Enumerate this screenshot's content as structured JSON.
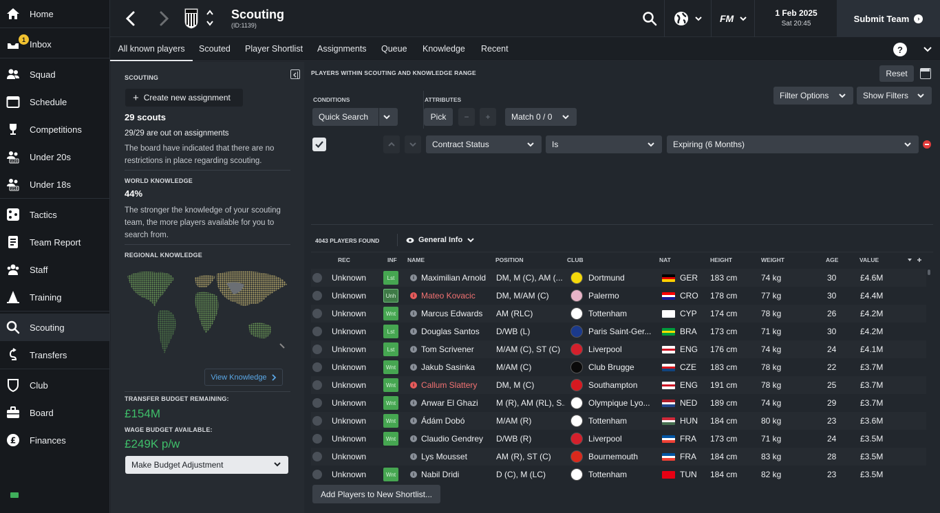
{
  "sidebar": {
    "items": [
      {
        "label": "Home",
        "icon": "home-icon"
      },
      {
        "label": "Inbox",
        "icon": "inbox-icon",
        "badge": "1"
      },
      {
        "label": "Squad",
        "icon": "squad-icon"
      },
      {
        "label": "Schedule",
        "icon": "calendar-icon"
      },
      {
        "label": "Competitions",
        "icon": "trophy-icon"
      },
      {
        "label": "Under 20s",
        "icon": "under20-icon",
        "tag": "U20"
      },
      {
        "label": "Under 18s",
        "icon": "under18-icon",
        "tag": "U18"
      },
      {
        "label": "Tactics",
        "icon": "tactics-icon"
      },
      {
        "label": "Team Report",
        "icon": "report-icon"
      },
      {
        "label": "Staff",
        "icon": "staff-icon"
      },
      {
        "label": "Training",
        "icon": "training-icon"
      },
      {
        "label": "Scouting",
        "icon": "search-icon"
      },
      {
        "label": "Transfers",
        "icon": "transfers-icon"
      },
      {
        "label": "Club",
        "icon": "club-icon"
      },
      {
        "label": "Board",
        "icon": "briefcase-icon"
      },
      {
        "label": "Finances",
        "icon": "pound-icon"
      }
    ],
    "active": "Scouting"
  },
  "header": {
    "title": "Scouting",
    "subtitle": "(ID:1139)",
    "date": "1 Feb 2025",
    "time": "Sat 20:45",
    "fm_label": "FM",
    "submit_label": "Submit Team"
  },
  "tabs": [
    {
      "label": "All known players",
      "active": true
    },
    {
      "label": "Scouted"
    },
    {
      "label": "Player Shortlist"
    },
    {
      "label": "Assignments"
    },
    {
      "label": "Queue"
    },
    {
      "label": "Knowledge"
    },
    {
      "label": "Recent"
    }
  ],
  "help_label": "?",
  "left_panel": {
    "scouting_heading": "SCOUTING",
    "create_assignment": "Create new assignment",
    "scouts_count": "29 scouts",
    "assignments_text": "29/29 are out on assignments",
    "board_text": "The board have indicated that there are no restrictions in place regarding scouting.",
    "world_heading": "WORLD KNOWLEDGE",
    "world_value": "44%",
    "world_text": "The stronger the knowledge of your scouting team, the more players available for you to search from.",
    "regional_heading": "REGIONAL KNOWLEDGE",
    "view_knowledge": "View Knowledge",
    "transfer_heading": "TRANSFER BUDGET REMAINING:",
    "transfer_value": "£154M",
    "wage_heading": "WAGE BUDGET AVAILABLE:",
    "wage_value": "£249K p/w",
    "budget_adjust": "Make Budget Adjustment"
  },
  "main": {
    "heading": "PLAYERS WITHIN SCOUTING AND KNOWLEDGE RANGE",
    "reset": "Reset",
    "conditions_heading": "CONDITIONS",
    "quick_search": "Quick Search",
    "attributes_heading": "ATTRIBUTES",
    "pick": "Pick",
    "minus": "−",
    "plus": "+",
    "match": "Match 0 / 0",
    "filter_options": "Filter Options",
    "show_filters": "Show Filters",
    "filter_rule": {
      "field": "Contract Status",
      "operator": "Is",
      "value": "Expiring (6 Months)",
      "checked": true
    },
    "found_text": "4043 PLAYERS FOUND",
    "view_label": "General Info",
    "add_shortlist": "Add Players to New Shortlist..."
  },
  "table": {
    "columns": [
      "REC",
      "INF",
      "NAME",
      "POSITION",
      "CLUB",
      "NAT",
      "HEIGHT",
      "WEIGHT",
      "AGE",
      "VALUE"
    ],
    "rows": [
      {
        "rec": "Unknown",
        "inf": "Lst",
        "name": "Maximilian Arnold",
        "highlight": false,
        "position": "DM, M (C), AM (...",
        "club": "Dortmund",
        "club_color": "#f5d90a",
        "nat": "GER",
        "flag": [
          "#000000",
          "#dd0000",
          "#ffce00"
        ],
        "height": "183 cm",
        "weight": "74 kg",
        "age": "30",
        "value": "£4.6M"
      },
      {
        "rec": "Unknown",
        "inf": "Unh",
        "name": "Mateo Kovacic",
        "highlight": true,
        "position": "DM, M/AM (C)",
        "club": "Palermo",
        "club_color": "#e8b4c8",
        "nat": "CRO",
        "flag": [
          "#ff0000",
          "#ffffff",
          "#171796"
        ],
        "height": "178 cm",
        "weight": "77 kg",
        "age": "30",
        "value": "£4.4M"
      },
      {
        "rec": "Unknown",
        "inf": "Wnt",
        "name": "Marcus Edwards",
        "highlight": false,
        "position": "AM (RLC)",
        "club": "Tottenham",
        "club_color": "#ffffff",
        "nat": "CYP",
        "flag": [
          "#ffffff",
          "#ffffff",
          "#ffffff"
        ],
        "height": "174 cm",
        "weight": "78 kg",
        "age": "26",
        "value": "£4.2M"
      },
      {
        "rec": "Unknown",
        "inf": "Lst",
        "name": "Douglas Santos",
        "highlight": false,
        "position": "D/WB (L)",
        "club": "Paris Saint-Ger...",
        "club_color": "#1b3a8c",
        "nat": "BRA",
        "flag": [
          "#009c3b",
          "#ffdf00",
          "#009c3b"
        ],
        "height": "173 cm",
        "weight": "71 kg",
        "age": "30",
        "value": "£4.2M"
      },
      {
        "rec": "Unknown",
        "inf": "Lst",
        "name": "Tom Scrivener",
        "highlight": false,
        "position": "M/AM (C), ST (C)",
        "club": "Liverpool",
        "club_color": "#d4202c",
        "nat": "ENG",
        "flag": [
          "#ffffff",
          "#ce1124",
          "#ffffff"
        ],
        "height": "176 cm",
        "weight": "74 kg",
        "age": "24",
        "value": "£4.1M"
      },
      {
        "rec": "Unknown",
        "inf": "Wnt",
        "name": "Jakub Sasinka",
        "highlight": false,
        "position": "M/AM (C)",
        "club": "Club Brugge",
        "club_color": "#0a0a0a",
        "nat": "CZE",
        "flag": [
          "#ffffff",
          "#d7141a",
          "#11457e"
        ],
        "height": "183 cm",
        "weight": "78 kg",
        "age": "22",
        "value": "£3.7M"
      },
      {
        "rec": "Unknown",
        "inf": "Wnt",
        "name": "Callum Slattery",
        "highlight": true,
        "position": "DM, M (C)",
        "club": "Southampton",
        "club_color": "#d71920",
        "nat": "ENG",
        "flag": [
          "#ffffff",
          "#ce1124",
          "#ffffff"
        ],
        "height": "191 cm",
        "weight": "78 kg",
        "age": "25",
        "value": "£3.7M"
      },
      {
        "rec": "Unknown",
        "inf": "Wnt",
        "name": "Anwar El Ghazi",
        "highlight": false,
        "position": "M (R), AM (RL), S...",
        "club": "Olympique Lyo...",
        "club_color": "#ffffff",
        "nat": "NED",
        "flag": [
          "#ae1c28",
          "#ffffff",
          "#21468b"
        ],
        "height": "189 cm",
        "weight": "74 kg",
        "age": "29",
        "value": "£3.7M"
      },
      {
        "rec": "Unknown",
        "inf": "Wnt",
        "name": "Ádám Dobó",
        "highlight": false,
        "position": "M/AM (R)",
        "club": "Tottenham",
        "club_color": "#ffffff",
        "nat": "HUN",
        "flag": [
          "#ce2939",
          "#ffffff",
          "#477050"
        ],
        "height": "184 cm",
        "weight": "80 kg",
        "age": "23",
        "value": "£3.6M"
      },
      {
        "rec": "Unknown",
        "inf": "Wnt",
        "name": "Claudio Gendrey",
        "highlight": false,
        "position": "D/WB (R)",
        "club": "Liverpool",
        "club_color": "#d4202c",
        "nat": "FRA",
        "flag": [
          "#0055a4",
          "#ffffff",
          "#ef4135"
        ],
        "height": "173 cm",
        "weight": "71 kg",
        "age": "24",
        "value": "£3.5M"
      },
      {
        "rec": "Unknown",
        "inf": "",
        "name": "Lys Mousset",
        "highlight": false,
        "position": "AM (R), ST (C)",
        "club": "Bournemouth",
        "club_color": "#da291c",
        "nat": "FRA",
        "flag": [
          "#0055a4",
          "#ffffff",
          "#ef4135"
        ],
        "height": "184 cm",
        "weight": "83 kg",
        "age": "28",
        "value": "£3.5M"
      },
      {
        "rec": "Unknown",
        "inf": "Wnt",
        "name": "Nabil Dridi",
        "highlight": false,
        "position": "D (C), M (LC)",
        "club": "Tottenham",
        "club_color": "#ffffff",
        "nat": "TUN",
        "flag": [
          "#e70013",
          "#e70013",
          "#e70013"
        ],
        "height": "184 cm",
        "weight": "82 kg",
        "age": "23",
        "value": "£3.5M"
      }
    ]
  }
}
